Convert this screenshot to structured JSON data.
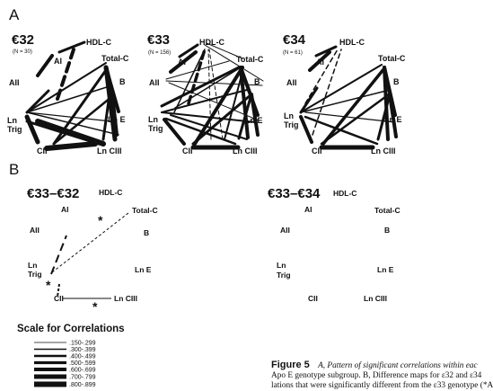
{
  "panel_a": {
    "label": "A",
    "graphs": [
      {
        "title": "€32",
        "n": "(N = 30)"
      },
      {
        "title": "€33",
        "n": "(N = 156)"
      },
      {
        "title": "€34",
        "n": "(N = 61)"
      }
    ]
  },
  "panel_b": {
    "label": "B",
    "graphs": [
      {
        "title": "€33–€32",
        "stars": [
          "*",
          "*",
          "*"
        ]
      },
      {
        "title": "€33–€34"
      }
    ]
  },
  "nodes": {
    "hdl": "HDL-C",
    "total": "Total-C",
    "b": "B",
    "lne": "Ln E",
    "lnciii": "Ln CIII",
    "cii": "CII",
    "lntrig": [
      "Ln",
      "Trig"
    ],
    "aii": "AII",
    "ai": "AI"
  },
  "scale": {
    "title": "Scale for Correlations",
    "items": [
      ".150-.299",
      ".300-.399",
      ".400-.499",
      ".500-.599",
      ".600-.699",
      ".700-.799",
      ".800-.899"
    ]
  },
  "caption": {
    "figure": "Figure 5",
    "line1": "A, Pattern of significant correlations within eac",
    "line2": "Apo E genotype subgroup. B, Difference maps for ε32 and ε34",
    "line3": "lations that were significantly different from the ε33 genotype (*A"
  }
}
